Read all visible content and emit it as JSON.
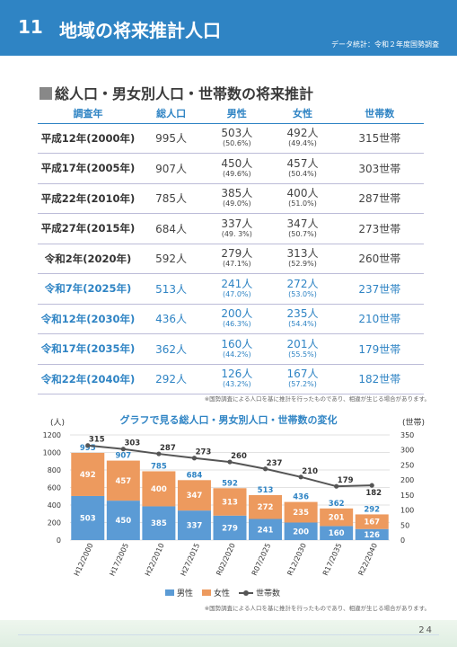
{
  "header": {
    "section_number": "11",
    "title": "地域の将来推計人口",
    "source": "データ統計：令和２年度国勢調査"
  },
  "section_title": "総人口・男女別人口・世帯数の将来推計",
  "table": {
    "headers": [
      "調査年",
      "総人口",
      "男性",
      "女性",
      "世帯数"
    ],
    "rows": [
      {
        "year": "平成12年(2000年)",
        "total": "995人",
        "male": "503人",
        "male_pct": "(50.6%)",
        "female": "492人",
        "female_pct": "(49.4%)",
        "households": "315世帯",
        "future": false
      },
      {
        "year": "平成17年(2005年)",
        "total": "907人",
        "male": "450人",
        "male_pct": "(49.6%)",
        "female": "457人",
        "female_pct": "(50.4%)",
        "households": "303世帯",
        "future": false
      },
      {
        "year": "平成22年(2010年)",
        "total": "785人",
        "male": "385人",
        "male_pct": "(49.0%)",
        "female": "400人",
        "female_pct": "(51.0%)",
        "households": "287世帯",
        "future": false
      },
      {
        "year": "平成27年(2015年)",
        "total": "684人",
        "male": "337人",
        "male_pct": "(49. 3%)",
        "female": "347人",
        "female_pct": "(50.7%)",
        "households": "273世帯",
        "future": false
      },
      {
        "year": "令和2年(2020年)",
        "total": "592人",
        "male": "279人",
        "male_pct": "(47.1%)",
        "female": "313人",
        "female_pct": "(52.9%)",
        "households": "260世帯",
        "future": false
      },
      {
        "year": "令和7年(2025年)",
        "total": "513人",
        "male": "241人",
        "male_pct": "(47.0%)",
        "female": "272人",
        "female_pct": "(53.0%)",
        "households": "237世帯",
        "future": true
      },
      {
        "year": "令和12年(2030年)",
        "total": "436人",
        "male": "200人",
        "male_pct": "(46.3%)",
        "female": "235人",
        "female_pct": "(54.4%)",
        "households": "210世帯",
        "future": true
      },
      {
        "year": "令和17年(2035年)",
        "total": "362人",
        "male": "160人",
        "male_pct": "(44.2%)",
        "female": "201人",
        "female_pct": "(55.5%)",
        "households": "179世帯",
        "future": true
      },
      {
        "year": "令和22年(2040年)",
        "total": "292人",
        "male": "126人",
        "male_pct": "(43.2%)",
        "female": "167人",
        "female_pct": "(57.2%)",
        "households": "182世帯",
        "future": true
      }
    ]
  },
  "table_note": "※国勢調査による人口を基に推計を行ったものであり、相違が生じる場合があります。",
  "chart_note": "※国勢調査による人口を基に推計を行ったものであり、相違が生じる場合があります。",
  "page_number": "24",
  "chart_data": {
    "type": "bar",
    "title": "グラフで見る総人口・男女別人口・世帯数の変化",
    "ylabel": "(人)",
    "y2label": "(世帯)",
    "categories": [
      "H12/2000",
      "H17/2005",
      "H22/2010",
      "H27/2015",
      "R02/2020",
      "R07/2025",
      "R12/2030",
      "R17/2035",
      "R22/2040"
    ],
    "ylim": [
      0,
      1200
    ],
    "y_ticks": [
      "0",
      "200",
      "400",
      "600",
      "800",
      "1000",
      "1200"
    ],
    "y2lim": [
      0,
      350
    ],
    "y2_ticks": [
      "0",
      "50",
      "100",
      "150",
      "200",
      "250",
      "300",
      "350"
    ],
    "stacked": true,
    "series": [
      {
        "name": "男性",
        "kind": "bar",
        "color": "#5b9bd5",
        "values": [
          503,
          450,
          385,
          337,
          279,
          241,
          200,
          160,
          126
        ]
      },
      {
        "name": "女性",
        "kind": "bar",
        "color": "#ed9a5e",
        "values": [
          492,
          457,
          400,
          347,
          313,
          272,
          235,
          201,
          167
        ]
      },
      {
        "name": "世帯数",
        "kind": "line",
        "axis": "right",
        "color": "#555555",
        "values": [
          315,
          303,
          287,
          273,
          260,
          237,
          210,
          179,
          182
        ]
      }
    ],
    "totals": [
      995,
      907,
      785,
      684,
      592,
      513,
      436,
      362,
      292
    ],
    "grid": true,
    "legend_position": "bottom"
  }
}
